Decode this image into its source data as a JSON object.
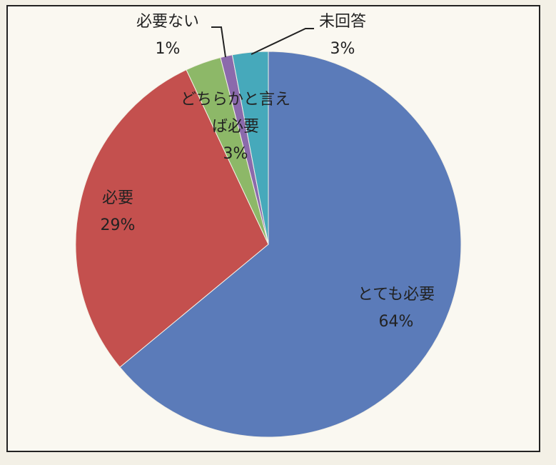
{
  "chart_data": {
    "type": "pie",
    "categories": [
      "とても必要",
      "必要",
      "どちらかと言えば必要",
      "必要ない",
      "未回答"
    ],
    "values": [
      64,
      29,
      3,
      1,
      3
    ],
    "value_labels": [
      "64%",
      "29%",
      "3%",
      "1%",
      "3%"
    ],
    "colors": [
      "#5b7bb9",
      "#c4504e",
      "#8db868",
      "#8b6aac",
      "#46a9bb"
    ]
  }
}
